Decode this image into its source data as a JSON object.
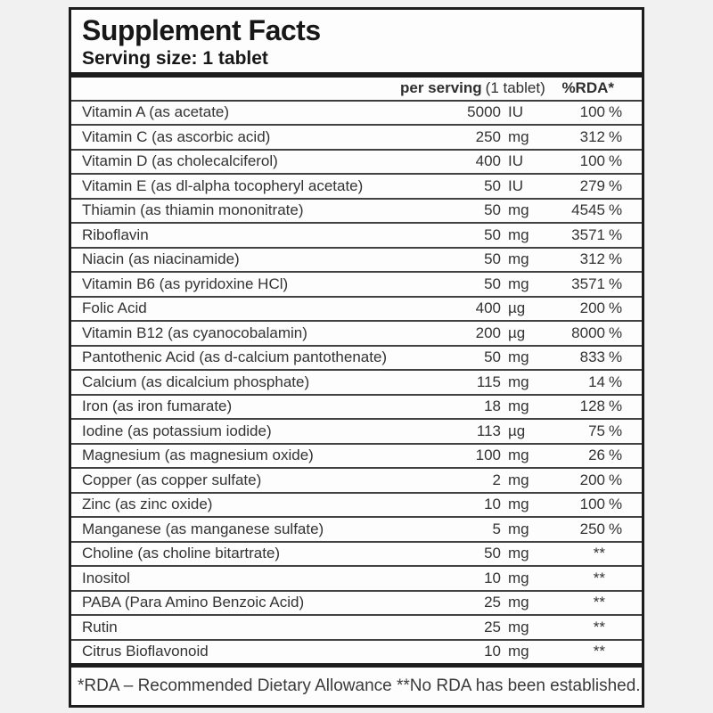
{
  "label": {
    "title": "Supplement Facts",
    "serving_size": "Serving size: 1 tablet",
    "columns": {
      "per_serving": "per serving",
      "per_serving_note": "(1 tablet)",
      "rda": "%RDA*"
    },
    "rows": [
      {
        "name": "Vitamin A (as acetate)",
        "amount": "5000",
        "unit": "IU",
        "rda": "100",
        "rda_unit": "%"
      },
      {
        "name": "Vitamin C (as ascorbic acid)",
        "amount": "250",
        "unit": "mg",
        "rda": "312",
        "rda_unit": "%"
      },
      {
        "name": "Vitamin D (as cholecalciferol)",
        "amount": "400",
        "unit": "IU",
        "rda": "100",
        "rda_unit": "%"
      },
      {
        "name": "Vitamin E (as dl-alpha tocopheryl acetate)",
        "amount": "50",
        "unit": "IU",
        "rda": "279",
        "rda_unit": "%"
      },
      {
        "name": "Thiamin (as thiamin mononitrate)",
        "amount": "50",
        "unit": "mg",
        "rda": "4545",
        "rda_unit": "%"
      },
      {
        "name": "Riboflavin",
        "amount": "50",
        "unit": "mg",
        "rda": "3571",
        "rda_unit": "%"
      },
      {
        "name": "Niacin (as niacinamide)",
        "amount": "50",
        "unit": "mg",
        "rda": "312",
        "rda_unit": "%"
      },
      {
        "name": "Vitamin B6 (as pyridoxine HCl)",
        "amount": "50",
        "unit": "mg",
        "rda": "3571",
        "rda_unit": "%"
      },
      {
        "name": "Folic Acid",
        "amount": "400",
        "unit": "µg",
        "rda": "200",
        "rda_unit": "%"
      },
      {
        "name": "Vitamin B12 (as cyanocobalamin)",
        "amount": "200",
        "unit": "µg",
        "rda": "8000",
        "rda_unit": "%"
      },
      {
        "name": "Pantothenic Acid (as d-calcium pantothenate)",
        "amount": "50",
        "unit": "mg",
        "rda": "833",
        "rda_unit": "%"
      },
      {
        "name": "Calcium (as dicalcium phosphate)",
        "amount": "115",
        "unit": "mg",
        "rda": "14",
        "rda_unit": "%"
      },
      {
        "name": "Iron (as iron fumarate)",
        "amount": "18",
        "unit": "mg",
        "rda": "128",
        "rda_unit": "%"
      },
      {
        "name": "Iodine (as potassium iodide)",
        "amount": "113",
        "unit": "µg",
        "rda": "75",
        "rda_unit": "%"
      },
      {
        "name": "Magnesium (as magnesium oxide)",
        "amount": "100",
        "unit": "mg",
        "rda": "26",
        "rda_unit": "%"
      },
      {
        "name": "Copper (as copper sulfate)",
        "amount": "2",
        "unit": "mg",
        "rda": "200",
        "rda_unit": "%"
      },
      {
        "name": "Zinc (as zinc oxide)",
        "amount": "10",
        "unit": "mg",
        "rda": "100",
        "rda_unit": "%"
      },
      {
        "name": "Manganese (as manganese sulfate)",
        "amount": "5",
        "unit": "mg",
        "rda": "250",
        "rda_unit": "%"
      },
      {
        "name": "Choline (as choline bitartrate)",
        "amount": "50",
        "unit": "mg",
        "rda": "**",
        "rda_unit": ""
      },
      {
        "name": "Inositol",
        "amount": "10",
        "unit": "mg",
        "rda": "**",
        "rda_unit": ""
      },
      {
        "name": "PABA (Para Amino Benzoic Acid)",
        "amount": "25",
        "unit": "mg",
        "rda": "**",
        "rda_unit": ""
      },
      {
        "name": "Rutin",
        "amount": "25",
        "unit": "mg",
        "rda": "**",
        "rda_unit": ""
      },
      {
        "name": "Citrus Bioflavonoid",
        "amount": "10",
        "unit": "mg",
        "rda": "**",
        "rda_unit": ""
      }
    ],
    "footnote": "*RDA – Recommended Dietary Allowance **No RDA has been established.",
    "colors": {
      "page_background": "#f1f1f1",
      "label_background": "#fdfdfd",
      "border": "#1d1d1d",
      "text": "#333333"
    }
  }
}
